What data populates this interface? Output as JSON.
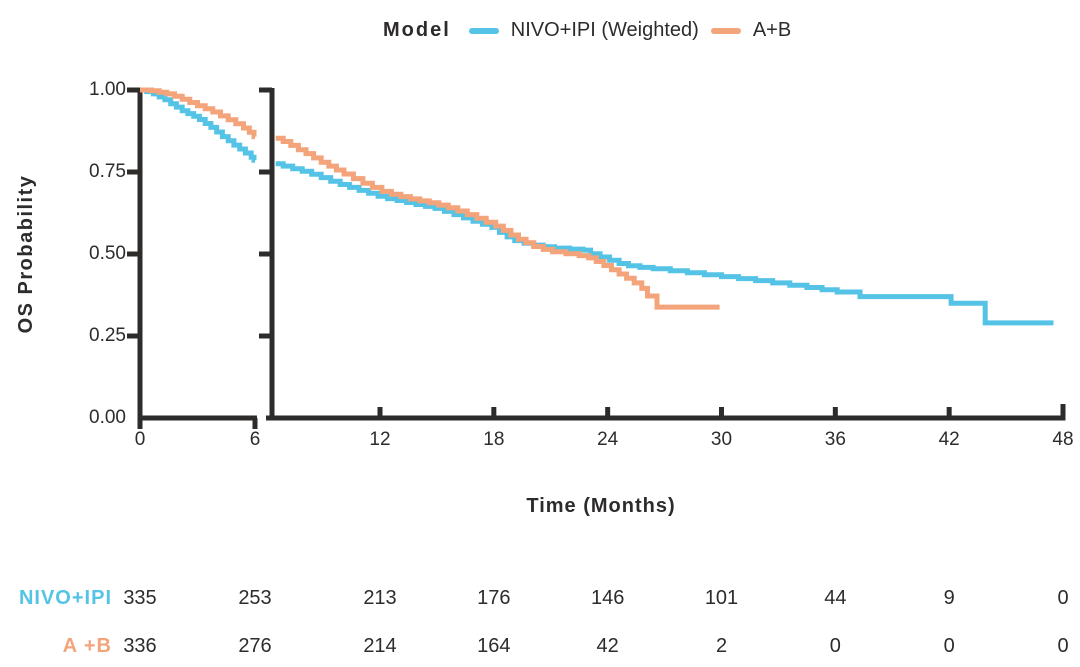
{
  "legend": {
    "title": "Model",
    "entries": [
      {
        "label": "NIVO+IPI (Weighted)",
        "color": "#54c3e6"
      },
      {
        "label": "A+B",
        "color": "#f3a47a"
      }
    ]
  },
  "chart_data": {
    "type": "line",
    "subtype": "kaplan-meier-step-with-x-axis-break",
    "title": "",
    "xlabel": "Time (Months)",
    "ylabel": "OS Probability",
    "xlim": [
      0,
      48
    ],
    "ylim": [
      0.0,
      1.0
    ],
    "x_ticks": [
      0,
      6,
      12,
      18,
      24,
      30,
      36,
      42,
      48
    ],
    "y_ticks": [
      1.0,
      0.75,
      0.5,
      0.25,
      0.0
    ],
    "y_tick_labels": [
      "1.00",
      "0.75",
      "0.50",
      "0.25",
      "0.00"
    ],
    "axis_break_months": [
      6,
      6.5
    ],
    "grid": false,
    "legend_position": "top-center",
    "series": [
      {
        "name": "NIVO+IPI (Weighted)",
        "color": "#54c3e6",
        "panel1": [
          [
            0,
            1.0
          ],
          [
            0.35,
            0.995
          ],
          [
            0.7,
            0.988
          ],
          [
            1.0,
            0.979
          ],
          [
            1.3,
            0.97
          ],
          [
            1.6,
            0.958
          ],
          [
            1.9,
            0.948
          ],
          [
            2.2,
            0.937
          ],
          [
            2.5,
            0.928
          ],
          [
            2.8,
            0.92
          ],
          [
            3.1,
            0.91
          ],
          [
            3.4,
            0.898
          ],
          [
            3.7,
            0.886
          ],
          [
            4.0,
            0.872
          ],
          [
            4.3,
            0.858
          ],
          [
            4.6,
            0.845
          ],
          [
            4.9,
            0.832
          ],
          [
            5.2,
            0.82
          ],
          [
            5.5,
            0.808
          ],
          [
            5.8,
            0.795
          ],
          [
            5.95,
            0.786
          ],
          [
            6.0,
            0.786
          ]
        ],
        "panel2": [
          [
            6.5,
            0.775
          ],
          [
            6.9,
            0.768
          ],
          [
            7.4,
            0.76
          ],
          [
            7.9,
            0.752
          ],
          [
            8.4,
            0.743
          ],
          [
            8.9,
            0.733
          ],
          [
            9.4,
            0.722
          ],
          [
            9.9,
            0.712
          ],
          [
            10.4,
            0.703
          ],
          [
            10.9,
            0.694
          ],
          [
            11.4,
            0.685
          ],
          [
            11.9,
            0.676
          ],
          [
            12.4,
            0.669
          ],
          [
            12.9,
            0.663
          ],
          [
            13.4,
            0.657
          ],
          [
            13.9,
            0.651
          ],
          [
            14.4,
            0.645
          ],
          [
            14.9,
            0.639
          ],
          [
            15.4,
            0.63
          ],
          [
            15.9,
            0.62
          ],
          [
            16.4,
            0.61
          ],
          [
            16.9,
            0.6
          ],
          [
            17.4,
            0.591
          ],
          [
            17.9,
            0.581
          ],
          [
            18.3,
            0.566
          ],
          [
            18.7,
            0.552
          ],
          [
            19.1,
            0.541
          ],
          [
            19.6,
            0.533
          ],
          [
            20.1,
            0.527
          ],
          [
            20.6,
            0.522
          ],
          [
            21.2,
            0.518
          ],
          [
            22.0,
            0.515
          ],
          [
            22.7,
            0.512
          ],
          [
            23.1,
            0.501
          ],
          [
            23.6,
            0.491
          ],
          [
            24.1,
            0.481
          ],
          [
            24.6,
            0.471
          ],
          [
            25.1,
            0.464
          ],
          [
            25.7,
            0.459
          ],
          [
            26.4,
            0.455
          ],
          [
            27.3,
            0.449
          ],
          [
            28.2,
            0.443
          ],
          [
            29.1,
            0.437
          ],
          [
            30.0,
            0.431
          ],
          [
            30.9,
            0.425
          ],
          [
            31.8,
            0.419
          ],
          [
            32.7,
            0.412
          ],
          [
            33.6,
            0.405
          ],
          [
            34.5,
            0.398
          ],
          [
            35.3,
            0.391
          ],
          [
            36.1,
            0.384
          ],
          [
            37.3,
            0.37
          ],
          [
            42.1,
            0.35
          ],
          [
            43.9,
            0.29
          ],
          [
            47.5,
            0.29
          ]
        ]
      },
      {
        "name": "A+B",
        "color": "#f3a47a",
        "panel1": [
          [
            0,
            1.0
          ],
          [
            0.6,
            0.998
          ],
          [
            1.0,
            0.993
          ],
          [
            1.4,
            0.988
          ],
          [
            1.8,
            0.981
          ],
          [
            2.2,
            0.972
          ],
          [
            2.6,
            0.962
          ],
          [
            3.0,
            0.952
          ],
          [
            3.4,
            0.943
          ],
          [
            3.8,
            0.933
          ],
          [
            4.2,
            0.921
          ],
          [
            4.6,
            0.909
          ],
          [
            5.0,
            0.897
          ],
          [
            5.4,
            0.884
          ],
          [
            5.7,
            0.871
          ],
          [
            5.95,
            0.858
          ],
          [
            6.0,
            0.858
          ]
        ],
        "panel2": [
          [
            6.5,
            0.853
          ],
          [
            6.9,
            0.843
          ],
          [
            7.3,
            0.831
          ],
          [
            7.7,
            0.818
          ],
          [
            8.1,
            0.806
          ],
          [
            8.5,
            0.793
          ],
          [
            8.9,
            0.78
          ],
          [
            9.3,
            0.768
          ],
          [
            9.7,
            0.756
          ],
          [
            10.1,
            0.744
          ],
          [
            10.6,
            0.73
          ],
          [
            11.1,
            0.716
          ],
          [
            11.6,
            0.703
          ],
          [
            12.1,
            0.691
          ],
          [
            12.6,
            0.682
          ],
          [
            13.1,
            0.675
          ],
          [
            13.6,
            0.668
          ],
          [
            14.1,
            0.662
          ],
          [
            14.6,
            0.656
          ],
          [
            15.1,
            0.649
          ],
          [
            15.6,
            0.641
          ],
          [
            16.1,
            0.631
          ],
          [
            16.6,
            0.62
          ],
          [
            17.1,
            0.609
          ],
          [
            17.6,
            0.597
          ],
          [
            18.1,
            0.585
          ],
          [
            18.5,
            0.572
          ],
          [
            18.9,
            0.558
          ],
          [
            19.3,
            0.545
          ],
          [
            19.7,
            0.534
          ],
          [
            20.1,
            0.523
          ],
          [
            20.6,
            0.514
          ],
          [
            21.1,
            0.507
          ],
          [
            21.8,
            0.501
          ],
          [
            22.5,
            0.495
          ],
          [
            23.0,
            0.488
          ],
          [
            23.4,
            0.477
          ],
          [
            23.8,
            0.465
          ],
          [
            24.2,
            0.452
          ],
          [
            24.6,
            0.439
          ],
          [
            25.0,
            0.426
          ],
          [
            25.4,
            0.412
          ],
          [
            25.8,
            0.395
          ],
          [
            26.1,
            0.372
          ],
          [
            26.6,
            0.338
          ],
          [
            29.9,
            0.338
          ]
        ]
      }
    ]
  },
  "risk_table": {
    "times": [
      0,
      6,
      12,
      18,
      24,
      30,
      36,
      42,
      48
    ],
    "rows": [
      {
        "label": "NIVO+IPI",
        "color": "#54c3e6",
        "values": [
          335,
          253,
          213,
          176,
          146,
          101,
          44,
          9,
          0
        ]
      },
      {
        "label": "A +B",
        "color": "#f3a47a",
        "values": [
          336,
          276,
          214,
          164,
          42,
          2,
          0,
          0,
          0
        ]
      }
    ]
  },
  "colors": {
    "axis": "#2e2b2b",
    "text": "#2e2b2b"
  }
}
